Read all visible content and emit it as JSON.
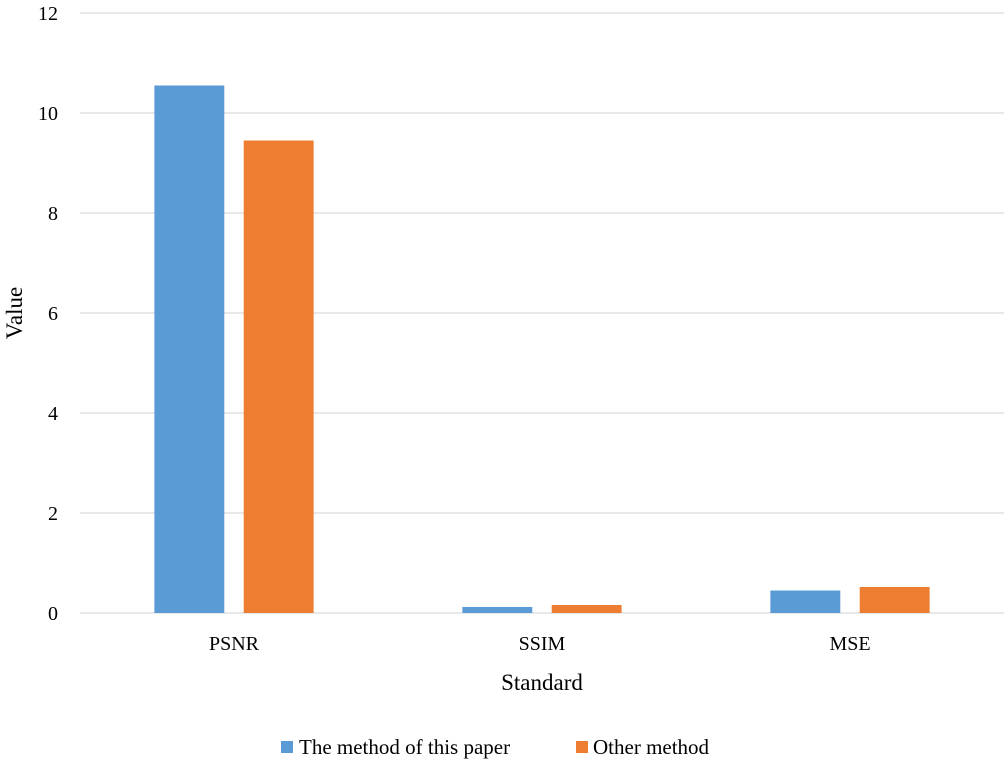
{
  "chart_data": {
    "type": "bar",
    "title": "",
    "xlabel": "Standard",
    "ylabel": "Value",
    "categories": [
      "PSNR",
      "SSIM",
      "MSE"
    ],
    "series": [
      {
        "name": "The method of this paper",
        "values": [
          10.55,
          0.12,
          0.45
        ],
        "color": "#5b9bd5"
      },
      {
        "name": "Other method",
        "values": [
          9.45,
          0.16,
          0.52
        ],
        "color": "#ed7d31"
      }
    ],
    "ylim": [
      0,
      12
    ],
    "yticks": [
      "0",
      "2",
      "4",
      "6",
      "8",
      "10",
      "12"
    ],
    "grid": true,
    "gridColor": "#d9d9d9",
    "legend": "bottom"
  }
}
